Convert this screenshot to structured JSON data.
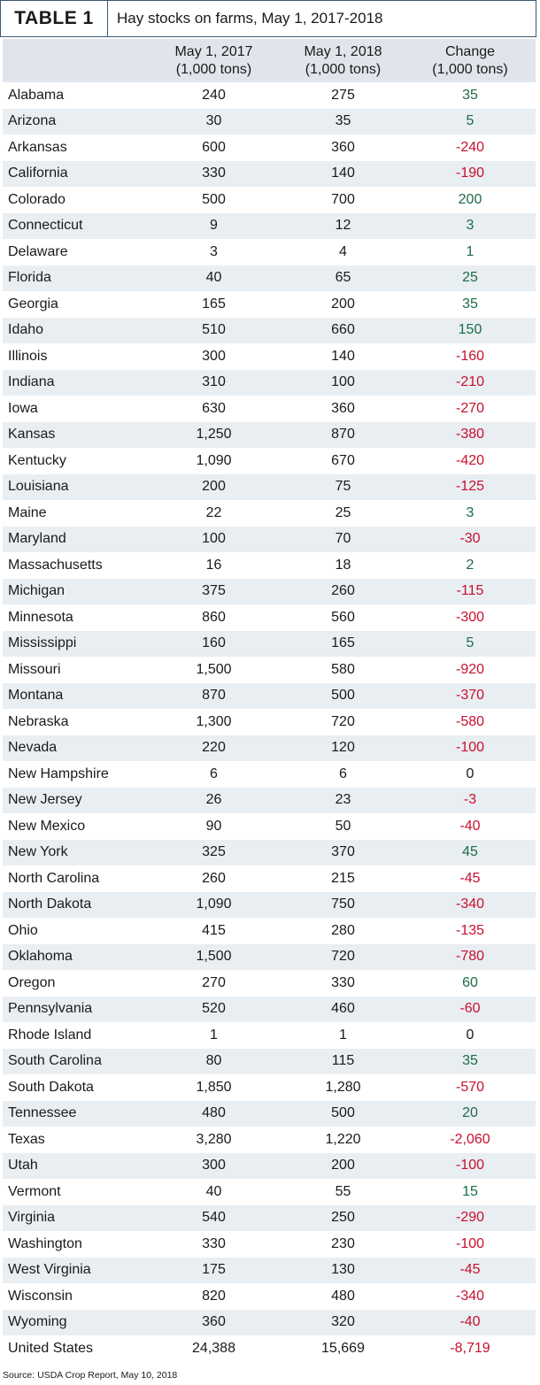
{
  "title": {
    "tag": "TABLE 1",
    "text": "Hay stocks on farms, May 1, 2017-2018"
  },
  "headers": {
    "state": "",
    "col1_line1": "May 1, 2017",
    "col1_line2": "(1,000 tons)",
    "col2_line1": "May 1, 2018",
    "col2_line2": "(1,000 tons)",
    "col3_line1": "Change",
    "col3_line2": "(1,000 tons)"
  },
  "colors": {
    "positive": "#1d6b45",
    "negative": "#c8102e",
    "header_bg": "#dfe5eb",
    "stripe_bg": "#e9eef2"
  },
  "rows": [
    {
      "state": "Alabama",
      "y2017": "240",
      "y2018": "275",
      "change": "35"
    },
    {
      "state": "Arizona",
      "y2017": "30",
      "y2018": "35",
      "change": "5"
    },
    {
      "state": "Arkansas",
      "y2017": "600",
      "y2018": "360",
      "change": "-240"
    },
    {
      "state": "California",
      "y2017": "330",
      "y2018": "140",
      "change": "-190"
    },
    {
      "state": "Colorado",
      "y2017": "500",
      "y2018": "700",
      "change": "200"
    },
    {
      "state": "Connecticut",
      "y2017": "9",
      "y2018": "12",
      "change": "3"
    },
    {
      "state": "Delaware",
      "y2017": "3",
      "y2018": "4",
      "change": "1"
    },
    {
      "state": "Florida",
      "y2017": "40",
      "y2018": "65",
      "change": "25"
    },
    {
      "state": "Georgia",
      "y2017": "165",
      "y2018": "200",
      "change": "35"
    },
    {
      "state": "Idaho",
      "y2017": "510",
      "y2018": "660",
      "change": "150"
    },
    {
      "state": "Illinois",
      "y2017": "300",
      "y2018": "140",
      "change": "-160"
    },
    {
      "state": "Indiana",
      "y2017": "310",
      "y2018": "100",
      "change": "-210"
    },
    {
      "state": "Iowa",
      "y2017": "630",
      "y2018": "360",
      "change": "-270"
    },
    {
      "state": "Kansas",
      "y2017": "1,250",
      "y2018": "870",
      "change": "-380"
    },
    {
      "state": "Kentucky",
      "y2017": "1,090",
      "y2018": "670",
      "change": "-420"
    },
    {
      "state": "Louisiana",
      "y2017": "200",
      "y2018": "75",
      "change": "-125"
    },
    {
      "state": "Maine",
      "y2017": "22",
      "y2018": "25",
      "change": "3"
    },
    {
      "state": "Maryland",
      "y2017": "100",
      "y2018": "70",
      "change": "-30"
    },
    {
      "state": "Massachusetts",
      "y2017": "16",
      "y2018": "18",
      "change": "2"
    },
    {
      "state": "Michigan",
      "y2017": "375",
      "y2018": "260",
      "change": "-115"
    },
    {
      "state": "Minnesota",
      "y2017": "860",
      "y2018": "560",
      "change": "-300"
    },
    {
      "state": "Mississippi",
      "y2017": "160",
      "y2018": "165",
      "change": "5"
    },
    {
      "state": "Missouri",
      "y2017": "1,500",
      "y2018": "580",
      "change": "-920"
    },
    {
      "state": "Montana",
      "y2017": "870",
      "y2018": "500",
      "change": "-370"
    },
    {
      "state": "Nebraska",
      "y2017": "1,300",
      "y2018": "720",
      "change": "-580"
    },
    {
      "state": "Nevada",
      "y2017": "220",
      "y2018": "120",
      "change": "-100"
    },
    {
      "state": "New Hampshire",
      "y2017": "6",
      "y2018": "6",
      "change": "0"
    },
    {
      "state": "New Jersey",
      "y2017": "26",
      "y2018": "23",
      "change": "-3"
    },
    {
      "state": "New Mexico",
      "y2017": "90",
      "y2018": "50",
      "change": "-40"
    },
    {
      "state": "New York",
      "y2017": "325",
      "y2018": "370",
      "change": "45"
    },
    {
      "state": "North Carolina",
      "y2017": "260",
      "y2018": "215",
      "change": "-45"
    },
    {
      "state": "North Dakota",
      "y2017": "1,090",
      "y2018": "750",
      "change": "-340"
    },
    {
      "state": "Ohio",
      "y2017": "415",
      "y2018": "280",
      "change": "-135"
    },
    {
      "state": "Oklahoma",
      "y2017": "1,500",
      "y2018": "720",
      "change": "-780"
    },
    {
      "state": "Oregon",
      "y2017": "270",
      "y2018": "330",
      "change": "60"
    },
    {
      "state": "Pennsylvania",
      "y2017": "520",
      "y2018": "460",
      "change": "-60"
    },
    {
      "state": "Rhode Island",
      "y2017": "1",
      "y2018": "1",
      "change": "0"
    },
    {
      "state": "South Carolina",
      "y2017": "80",
      "y2018": "115",
      "change": "35"
    },
    {
      "state": "South Dakota",
      "y2017": "1,850",
      "y2018": "1,280",
      "change": "-570"
    },
    {
      "state": "Tennessee",
      "y2017": "480",
      "y2018": "500",
      "change": "20"
    },
    {
      "state": "Texas",
      "y2017": "3,280",
      "y2018": "1,220",
      "change": "-2,060"
    },
    {
      "state": "Utah",
      "y2017": "300",
      "y2018": "200",
      "change": "-100"
    },
    {
      "state": "Vermont",
      "y2017": "40",
      "y2018": "55",
      "change": "15"
    },
    {
      "state": "Virginia",
      "y2017": "540",
      "y2018": "250",
      "change": "-290"
    },
    {
      "state": "Washington",
      "y2017": "330",
      "y2018": "230",
      "change": "-100"
    },
    {
      "state": "West Virginia",
      "y2017": "175",
      "y2018": "130",
      "change": "-45"
    },
    {
      "state": "Wisconsin",
      "y2017": "820",
      "y2018": "480",
      "change": "-340"
    },
    {
      "state": "Wyoming",
      "y2017": "360",
      "y2018": "320",
      "change": "-40"
    },
    {
      "state": "United States",
      "y2017": "24,388",
      "y2018": "15,669",
      "change": "-8,719"
    }
  ],
  "source": "Source: USDA Crop Report, May 10, 2018"
}
